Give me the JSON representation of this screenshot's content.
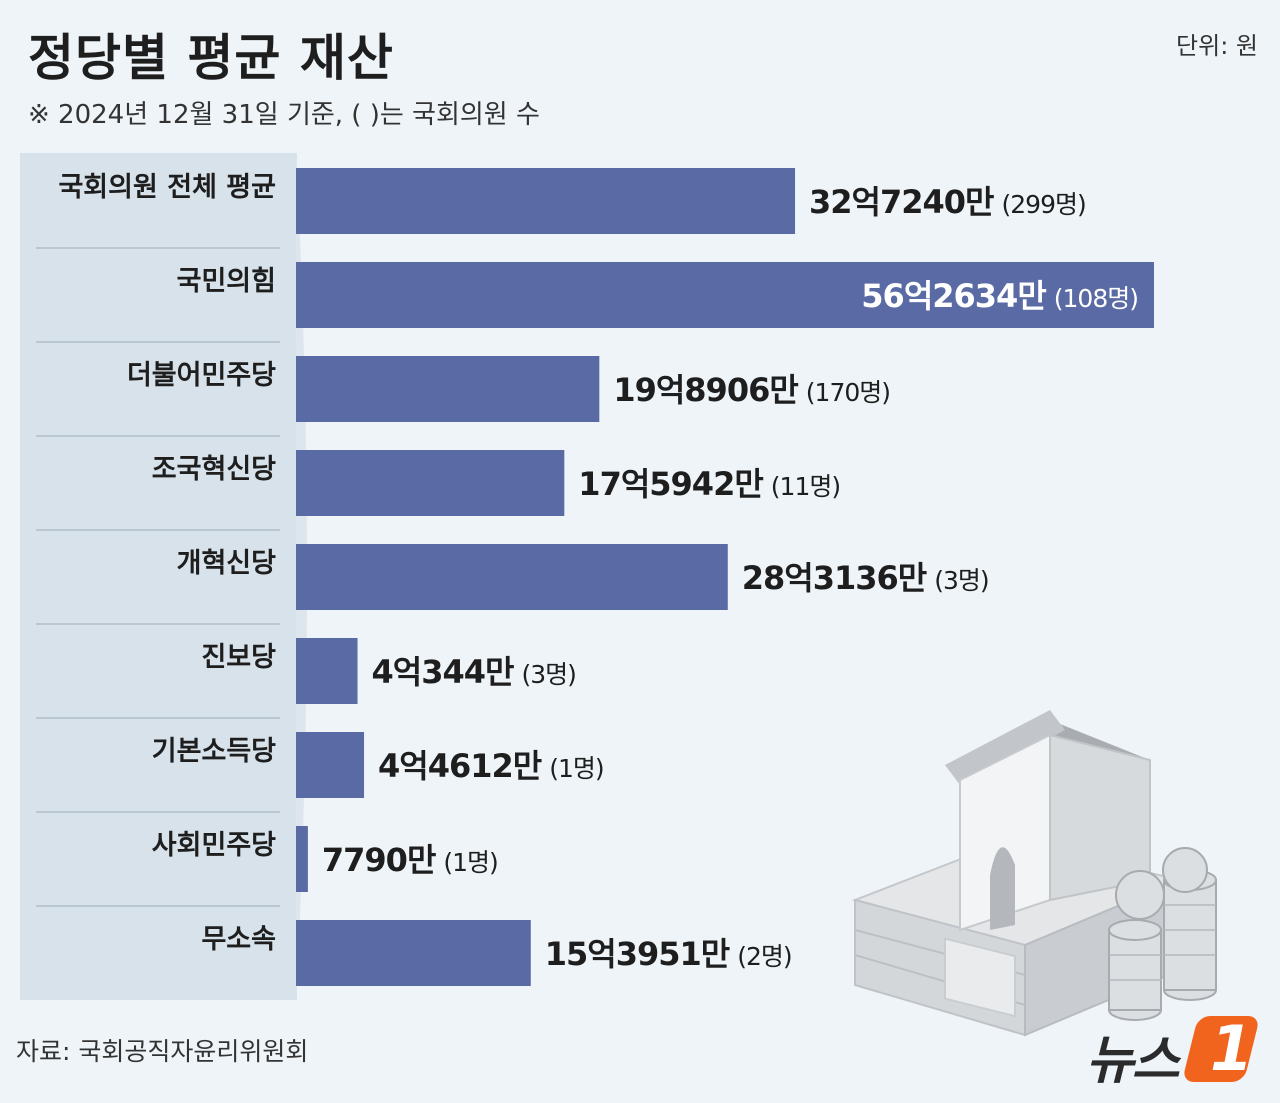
{
  "title": "정당별 평균 재산",
  "unit": "단위: 원",
  "note": "※ 2024년 12월 31일 기준, ( )는 국회의원 수",
  "source": "자료: 국회공직자윤리위원회",
  "logo": {
    "text": "뉴스",
    "number": "1"
  },
  "colors": {
    "bar": "#5a6aa4",
    "label_panel": "#d7e2ea",
    "background": "#eef4f8",
    "logo_accent": "#f0641e",
    "value_inside_text": "#ffffff"
  },
  "chart_data": {
    "type": "bar",
    "orientation": "horizontal",
    "categories": [
      "국회의원 전체 평균",
      "국민의힘",
      "더불어민주당",
      "조국혁신당",
      "개혁신당",
      "진보당",
      "기본소득당",
      "사회민주당",
      "무소속"
    ],
    "values": [
      327240,
      562634,
      198906,
      175942,
      283136,
      40344,
      44612,
      7790,
      153951
    ],
    "value_unit": "만원",
    "value_labels": [
      "32억7240만",
      "56억2634만",
      "19억8906만",
      "17억5942만",
      "28억3136만",
      "4억344만",
      "4억4612만",
      "7790만",
      "15억3951만"
    ],
    "member_counts": [
      "(299명)",
      "(108명)",
      "(170명)",
      "(11명)",
      "(3명)",
      "(3명)",
      "(1명)",
      "(1명)",
      "(2명)"
    ],
    "value_label_inside": [
      false,
      true,
      false,
      false,
      false,
      false,
      false,
      false,
      false
    ],
    "xlim": [
      0,
      600000
    ],
    "grid": false,
    "legend": "none",
    "xlabel": "",
    "ylabel": ""
  }
}
